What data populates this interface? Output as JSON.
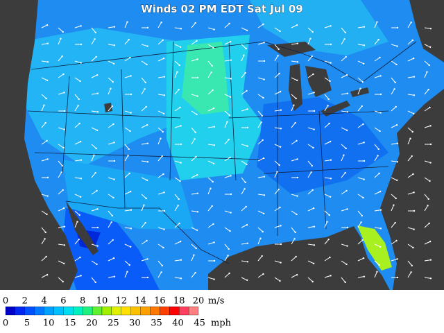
{
  "title": "Winds 02 PM EDT Sat Jul 09",
  "colorbar": {
    "range": [
      0,
      20
    ],
    "colors": [
      "#0000c8",
      "#0028f0",
      "#0050ff",
      "#0078ff",
      "#00a0ff",
      "#00c0ff",
      "#00dcf0",
      "#00f0c0",
      "#20f080",
      "#60f030",
      "#a0f000",
      "#e0f000",
      "#ffe000",
      "#ffc000",
      "#ffa000",
      "#ff7800",
      "#ff4000",
      "#ff0000",
      "#ff4060",
      "#ff8080"
    ],
    "ms_ticks": [
      0,
      2,
      4,
      6,
      8,
      10,
      12,
      14,
      16,
      18,
      20
    ],
    "ms_unit": "m/s",
    "mph_ticks": [
      0,
      5,
      10,
      15,
      20,
      25,
      30,
      35,
      40,
      45
    ],
    "mph_unit": "mph"
  }
}
